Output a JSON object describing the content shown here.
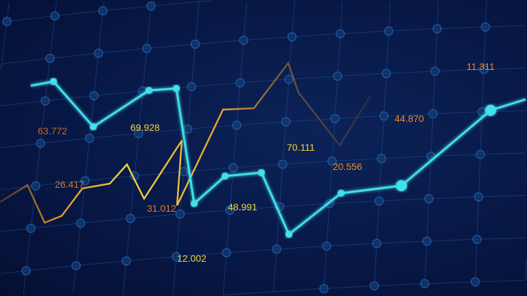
{
  "chart_data": {
    "type": "line",
    "grid": true,
    "colors": {
      "background": "#081a4a",
      "grid": "#1f4f8a",
      "series_1": "#3fe0ec",
      "series_2": "#f2d43a",
      "label_orange": "#f08a24",
      "label_yellow": "#f2d43a"
    },
    "series": [
      {
        "color": "#3fe0ec"
      },
      {
        "color": "#f2d43a"
      }
    ],
    "annotations": [
      {
        "text": "63.772",
        "color": "#c06a28"
      },
      {
        "text": "69.928",
        "color": "#f2d43a"
      },
      {
        "text": "26.417",
        "color": "#d07a2a"
      },
      {
        "text": "31.012",
        "color": "#e0782a"
      },
      {
        "text": "12.002",
        "color": "#f2d43a"
      },
      {
        "text": "48.991",
        "color": "#f2d43a"
      },
      {
        "text": "70.111",
        "color": "#f2d43a"
      },
      {
        "text": "20.556",
        "color": "#f08a24"
      },
      {
        "text": "44.870",
        "color": "#f08a24"
      },
      {
        "text": "11.311",
        "color": "#f08a24"
      }
    ]
  }
}
